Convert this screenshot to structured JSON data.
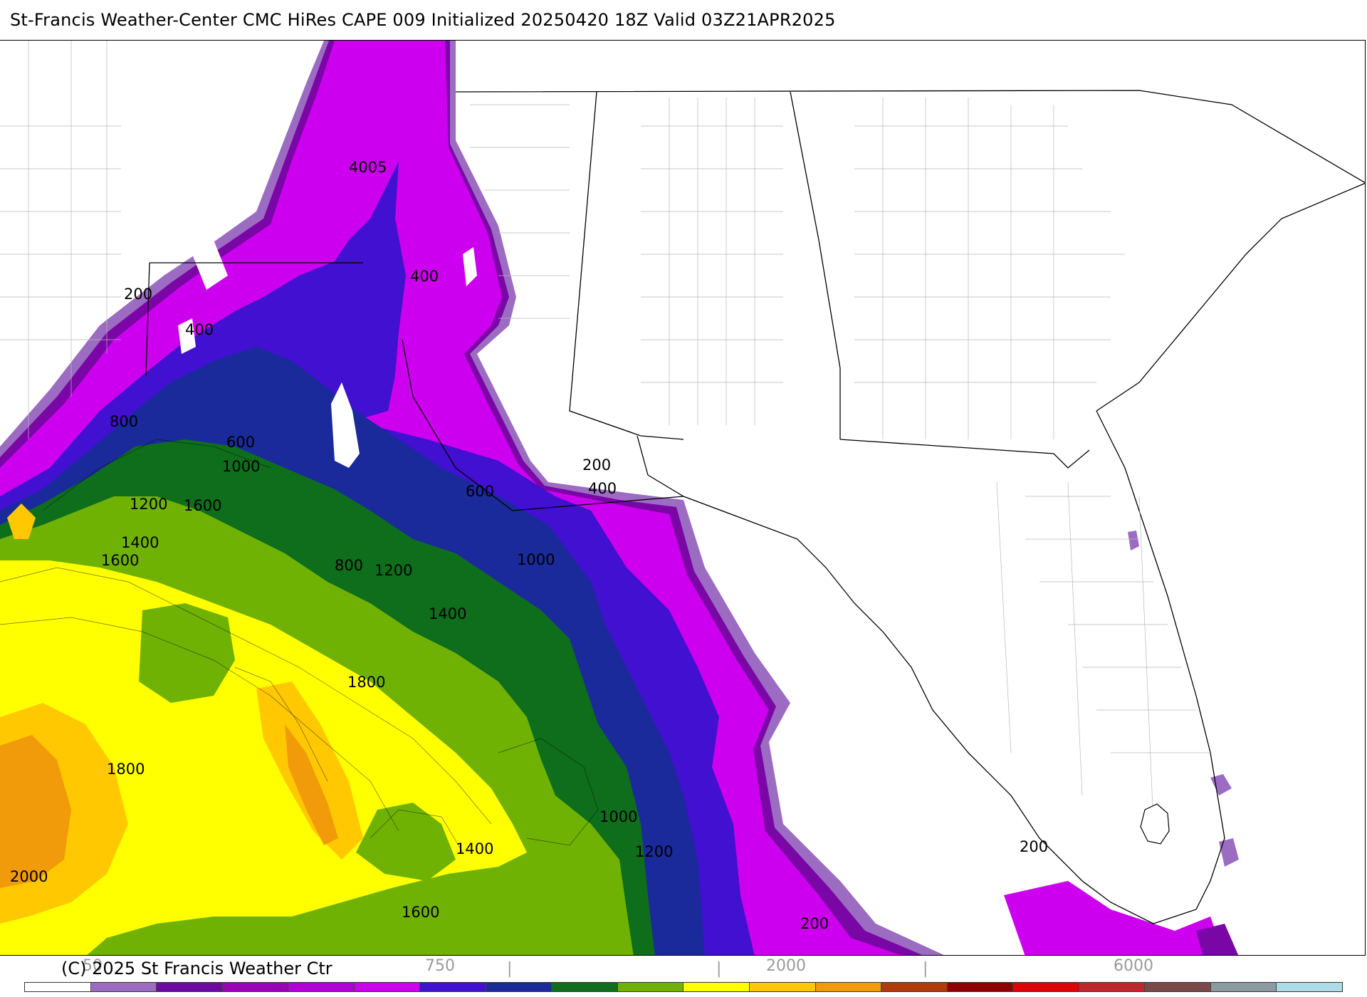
{
  "header": {
    "title": "St-Francis Weather-Center CMC HiRes CAPE  009 Initialized 20250420 18Z Valid 03Z21APR2025"
  },
  "map": {
    "contour_labels": [
      "4005",
      "400",
      "200",
      "400",
      "800",
      "600",
      "1000",
      "1200",
      "1600",
      "1400",
      "1600",
      "200",
      "400",
      "600",
      "800",
      "1200",
      "1000",
      "1400",
      "1800",
      "1800",
      "2000",
      "1000",
      "1200",
      "1400",
      "1600",
      "200",
      "200"
    ],
    "fill_colors": {
      "cape_100": "#9b6cc2",
      "cape_200": "#7a06a6",
      "cape_300": "#b200d8",
      "cape_400": "#cc00ee",
      "cape_600": "#4110d0",
      "cape_800": "#1a2a9a",
      "cape_1000": "#0f6e1c",
      "cape_1200": "#6fb204",
      "cape_1600": "#ffff00",
      "cape_1800": "#ffc800",
      "cape_2000": "#f19a0a"
    }
  },
  "footer": {
    "copyright": "(C) 2025 St Francis Weather Ctr",
    "ticks": [
      "50",
      "750",
      "2000",
      "6000"
    ],
    "colorbar": [
      "#ffffff",
      "#9b6cc2",
      "#6b0aa3",
      "#9a00b8",
      "#b200d8",
      "#cc00ee",
      "#4110d0",
      "#1a2a9a",
      "#0f6e1c",
      "#6fb204",
      "#ffff00",
      "#ffc800",
      "#f19a0a",
      "#b33a0a",
      "#8e0000",
      "#e00000",
      "#c0262a",
      "#7a4a4a",
      "#8c9aa2",
      "#acdce6"
    ]
  }
}
